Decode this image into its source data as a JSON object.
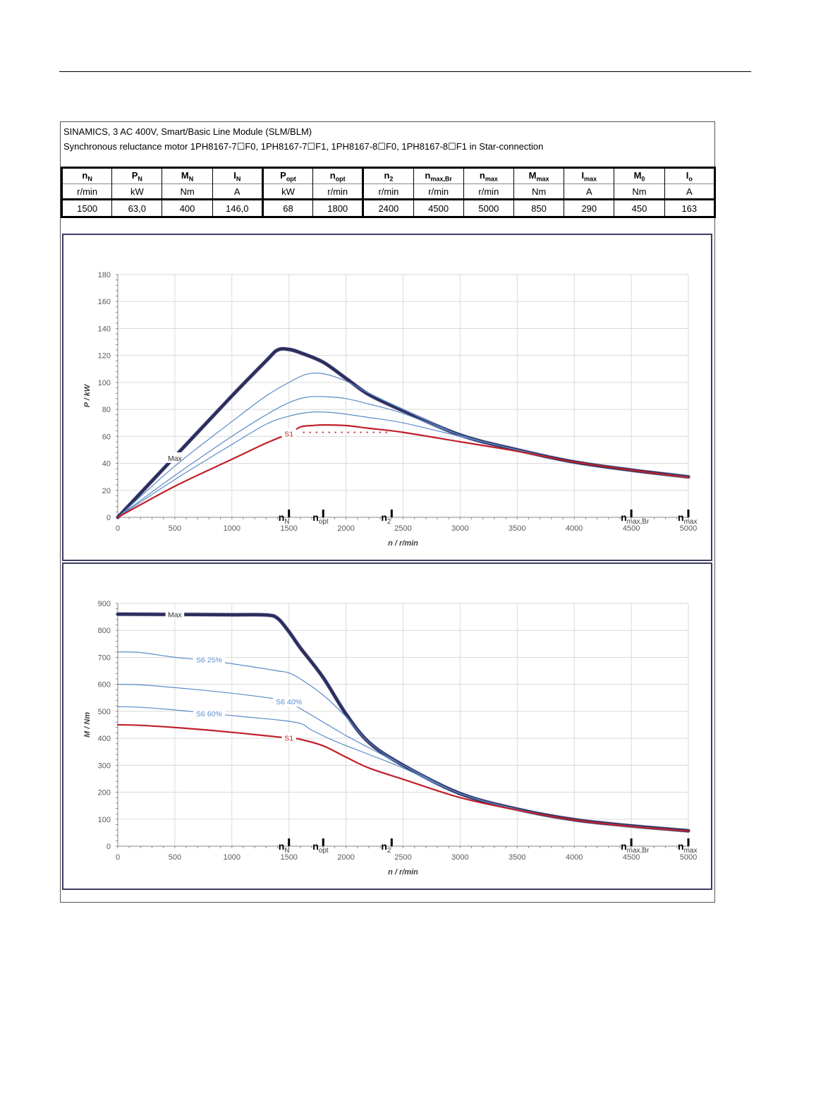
{
  "header": {
    "line1": "SINAMICS, 3 AC 400V, Smart/Basic Line Module (SLM/BLM)",
    "line2": "Synchronous reluctance motor  1PH8167-7☐F0,  1PH8167-7☐F1,  1PH8167-8☐F0,  1PH8167-8☐F1   in Star-connection"
  },
  "spec_table": {
    "columns": [
      {
        "sym": "n",
        "sub": "N",
        "unit": "r/min",
        "value": "1500"
      },
      {
        "sym": "P",
        "sub": "N",
        "unit": "kW",
        "value": "63,0"
      },
      {
        "sym": "M",
        "sub": "N",
        "unit": "Nm",
        "value": "400"
      },
      {
        "sym": "I",
        "sub": "N",
        "unit": "A",
        "value": "146,0"
      },
      {
        "sym": "P",
        "sub": "opt",
        "unit": "kW",
        "value": "68"
      },
      {
        "sym": "n",
        "sub": "opt",
        "unit": "r/min",
        "value": "1800"
      },
      {
        "sym": "n",
        "sub": "2",
        "unit": "r/min",
        "value": "2400"
      },
      {
        "sym": "n",
        "sub": "max,Br",
        "unit": "r/min",
        "value": "4500"
      },
      {
        "sym": "n",
        "sub": "max",
        "unit": "r/min",
        "value": "5000"
      },
      {
        "sym": "M",
        "sub": "max",
        "unit": "Nm",
        "value": "850"
      },
      {
        "sym": "I",
        "sub": "max",
        "unit": "A",
        "value": "290"
      },
      {
        "sym": "M",
        "sub": "0",
        "unit": "Nm",
        "value": "450"
      },
      {
        "sym": "I",
        "sub": "o",
        "unit": "A",
        "value": "163"
      }
    ]
  },
  "colors": {
    "max": "#2b2d5c",
    "s6": "#5b8ac8",
    "s1": "#c0202a",
    "grid": "#d9d9d9",
    "axis_text": "#595959"
  },
  "chart_data": [
    {
      "type": "line",
      "title": "",
      "xlabel": "n / r/min",
      "ylabel": "P / kW",
      "xlim": [
        0,
        5000
      ],
      "ylim": [
        0,
        180
      ],
      "x_ticks": [
        0,
        500,
        1000,
        1500,
        2000,
        2500,
        3000,
        3500,
        4000,
        4500,
        5000
      ],
      "y_ticks": [
        0,
        20,
        40,
        60,
        80,
        100,
        120,
        140,
        160,
        180
      ],
      "grid": true,
      "speed_markers": [
        {
          "n": 1500,
          "main": "n",
          "sub": "N"
        },
        {
          "n": 1800,
          "main": "n",
          "sub": "opt"
        },
        {
          "n": 2400,
          "main": "n",
          "sub": "2"
        },
        {
          "n": 4500,
          "main": "n",
          "sub": "max,Br"
        },
        {
          "n": 5000,
          "main": "n",
          "sub": "max"
        }
      ],
      "series": [
        {
          "name": "Max",
          "style": "max",
          "label_at": [
            500,
            44
          ],
          "points": [
            [
              0,
              0
            ],
            [
              500,
              45
            ],
            [
              1000,
              90
            ],
            [
              1300,
              116
            ],
            [
              1400,
              124
            ],
            [
              1500,
              124.5
            ],
            [
              1600,
              122
            ],
            [
              1800,
              115
            ],
            [
              2000,
              103
            ],
            [
              2200,
              91
            ],
            [
              2500,
              79
            ],
            [
              3000,
              61
            ],
            [
              3500,
              50
            ],
            [
              4000,
              41
            ],
            [
              4500,
              35
            ],
            [
              5000,
              30
            ]
          ]
        },
        {
          "name": "",
          "style": "s6",
          "points": [
            [
              0,
              0
            ],
            [
              500,
              38
            ],
            [
              1000,
              71
            ],
            [
              1300,
              90
            ],
            [
              1500,
              100
            ],
            [
              1650,
              106
            ],
            [
              1800,
              106.5
            ],
            [
              2000,
              101
            ],
            [
              2200,
              92
            ],
            [
              2500,
              80
            ],
            [
              3000,
              61
            ],
            [
              3500,
              50
            ],
            [
              4000,
              41
            ],
            [
              4500,
              35
            ],
            [
              5000,
              30
            ]
          ]
        },
        {
          "name": "",
          "style": "s6",
          "points": [
            [
              0,
              0
            ],
            [
              500,
              31
            ],
            [
              1000,
              60
            ],
            [
              1300,
              76
            ],
            [
              1500,
              85
            ],
            [
              1650,
              89
            ],
            [
              1800,
              89.5
            ],
            [
              2000,
              88
            ],
            [
              2200,
              84
            ],
            [
              2500,
              77
            ],
            [
              3000,
              61
            ],
            [
              3500,
              50
            ],
            [
              4000,
              41
            ],
            [
              4500,
              35
            ],
            [
              5000,
              30
            ]
          ]
        },
        {
          "name": "",
          "style": "s6",
          "points": [
            [
              0,
              0
            ],
            [
              500,
              28
            ],
            [
              1000,
              54
            ],
            [
              1300,
              69
            ],
            [
              1500,
              75
            ],
            [
              1700,
              78
            ],
            [
              1900,
              77.5
            ],
            [
              2200,
              74
            ],
            [
              2500,
              70
            ],
            [
              3000,
              60
            ],
            [
              3500,
              50
            ],
            [
              4000,
              41
            ],
            [
              4500,
              35
            ],
            [
              5000,
              30
            ]
          ]
        },
        {
          "name": "S1",
          "style": "s1",
          "label_at": [
            1500,
            62
          ],
          "points": [
            [
              0,
              0
            ],
            [
              500,
              23
            ],
            [
              1000,
              43
            ],
            [
              1300,
              55
            ],
            [
              1500,
              62
            ],
            [
              1600,
              67
            ],
            [
              1700,
              68
            ],
            [
              1800,
              68.5
            ],
            [
              2000,
              68
            ],
            [
              2200,
              66
            ],
            [
              2500,
              63
            ],
            [
              3000,
              56
            ],
            [
              3500,
              49
            ],
            [
              4000,
              41
            ],
            [
              4500,
              35
            ],
            [
              5000,
              29.5
            ]
          ]
        }
      ],
      "dotted_line": {
        "x": [
          1500,
          2400
        ],
        "y": 63
      }
    },
    {
      "type": "line",
      "title": "",
      "xlabel": "n / r/min",
      "ylabel": "M / Nm",
      "xlim": [
        0,
        5000
      ],
      "ylim": [
        0,
        900
      ],
      "x_ticks": [
        0,
        500,
        1000,
        1500,
        2000,
        2500,
        3000,
        3500,
        4000,
        4500,
        5000
      ],
      "y_ticks": [
        0,
        100,
        200,
        300,
        400,
        500,
        600,
        700,
        800,
        900
      ],
      "grid": true,
      "speed_markers": [
        {
          "n": 1500,
          "main": "n",
          "sub": "N"
        },
        {
          "n": 1800,
          "main": "n",
          "sub": "opt"
        },
        {
          "n": 2400,
          "main": "n",
          "sub": "2"
        },
        {
          "n": 4500,
          "main": "n",
          "sub": "max,Br"
        },
        {
          "n": 5000,
          "main": "n",
          "sub": "max"
        }
      ],
      "series": [
        {
          "name": "Max",
          "style": "max",
          "label_at": [
            500,
            860
          ],
          "points": [
            [
              0,
              860
            ],
            [
              500,
              859
            ],
            [
              1000,
              858
            ],
            [
              1300,
              857
            ],
            [
              1400,
              845
            ],
            [
              1500,
              795
            ],
            [
              1600,
              735
            ],
            [
              1800,
              625
            ],
            [
              2000,
              490
            ],
            [
              2200,
              385
            ],
            [
              2500,
              300
            ],
            [
              3000,
              195
            ],
            [
              3500,
              137
            ],
            [
              4000,
              98
            ],
            [
              4500,
              75
            ],
            [
              5000,
              57
            ]
          ]
        },
        {
          "name": "S6 25%",
          "style": "s6",
          "label_at": [
            800,
            692
          ],
          "points": [
            [
              0,
              720
            ],
            [
              200,
              718
            ],
            [
              500,
              700
            ],
            [
              800,
              688
            ],
            [
              1100,
              670
            ],
            [
              1400,
              650
            ],
            [
              1500,
              642
            ],
            [
              1600,
              620
            ],
            [
              1800,
              560
            ],
            [
              2000,
              480
            ],
            [
              2200,
              385
            ],
            [
              2500,
              300
            ],
            [
              3000,
              195
            ],
            [
              3500,
              137
            ],
            [
              4000,
              98
            ],
            [
              4500,
              75
            ],
            [
              5000,
              57
            ]
          ]
        },
        {
          "name": "S6 40%",
          "style": "s6",
          "label_at": [
            1500,
            536
          ],
          "points": [
            [
              0,
              600
            ],
            [
              200,
              598
            ],
            [
              500,
              588
            ],
            [
              800,
              576
            ],
            [
              1100,
              562
            ],
            [
              1400,
              545
            ],
            [
              1500,
              537
            ],
            [
              1600,
              510
            ],
            [
              1800,
              460
            ],
            [
              2000,
              410
            ],
            [
              2200,
              365
            ],
            [
              2500,
              300
            ],
            [
              3000,
              195
            ],
            [
              3500,
              137
            ],
            [
              4000,
              98
            ],
            [
              4500,
              75
            ],
            [
              5000,
              57
            ]
          ]
        },
        {
          "name": "S6 60%",
          "style": "s6",
          "label_at": [
            800,
            492
          ],
          "points": [
            [
              0,
              517
            ],
            [
              200,
              515
            ],
            [
              500,
              505
            ],
            [
              800,
              493
            ],
            [
              1100,
              480
            ],
            [
              1400,
              468
            ],
            [
              1600,
              455
            ],
            [
              1700,
              430
            ],
            [
              1900,
              390
            ],
            [
              2200,
              340
            ],
            [
              2500,
              290
            ],
            [
              3000,
              195
            ],
            [
              3500,
              137
            ],
            [
              4000,
              98
            ],
            [
              4500,
              75
            ],
            [
              5000,
              57
            ]
          ]
        },
        {
          "name": "S1",
          "style": "s1",
          "label_at": [
            1500,
            402
          ],
          "points": [
            [
              0,
              450
            ],
            [
              200,
              448
            ],
            [
              500,
              440
            ],
            [
              800,
              430
            ],
            [
              1100,
              418
            ],
            [
              1400,
              405
            ],
            [
              1500,
              402
            ],
            [
              1600,
              396
            ],
            [
              1800,
              372
            ],
            [
              2000,
              330
            ],
            [
              2200,
              290
            ],
            [
              2500,
              248
            ],
            [
              3000,
              180
            ],
            [
              3500,
              134
            ],
            [
              4000,
              97
            ],
            [
              4500,
              73
            ],
            [
              5000,
              56
            ]
          ]
        }
      ]
    }
  ]
}
